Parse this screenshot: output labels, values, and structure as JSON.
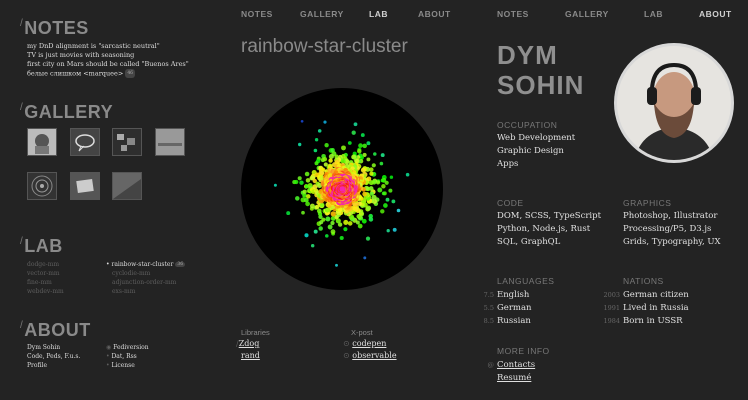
{
  "left": {
    "notes_title": "NOTES",
    "notes": [
      "my DnD alignment is \"sarcastic neutral\"",
      "TV is just movies with seasoning",
      "first city on Mars should be called \"Buenos Ares\"",
      "белые слишком <marquee>"
    ],
    "notes_badge": "46",
    "gallery_title": "GALLERY",
    "lab_title": "LAB",
    "lab_col1": [
      "dodge-mm",
      "vector-mm",
      "fine-mm",
      "webdev-mm"
    ],
    "lab_col2": [
      "rainbow-star-cluster",
      "cyclodie-mm",
      "adjunction-order-mm",
      "exs-mm"
    ],
    "lab_badge": "36",
    "about_title": "ABOUT",
    "about_col1": [
      "Dym Sohin",
      "Code, Peds, F.u.s.",
      "Profile"
    ],
    "about_col2": [
      "Fediversion",
      "Dat, Rss",
      "License"
    ]
  },
  "middle": {
    "nav": [
      "NOTES",
      "GALLERY",
      "LAB",
      "ABOUT"
    ],
    "active_nav": "LAB",
    "title": "rainbow-star-cluster",
    "libraries_label": "Libraries",
    "libraries": [
      "Zdog",
      "rand"
    ],
    "xpost_label": "X-post",
    "xposts": [
      "codepen",
      "observable"
    ]
  },
  "right": {
    "nav": [
      "NOTES",
      "GALLERY",
      "LAB",
      "ABOUT"
    ],
    "active_nav": "ABOUT",
    "name_line1": "DYM",
    "name_line2": "SOHIN",
    "occupation_label": "OCCUPATION",
    "occupation": [
      "Web Development",
      "Graphic Design",
      "Apps"
    ],
    "code_label": "CODE",
    "code": [
      "DOM, SCSS, TypeScript",
      "Python, Node.js, Rust",
      "SQL, GraphQL"
    ],
    "graphics_label": "GRAPHICS",
    "graphics": [
      "Photoshop, Illustrator",
      "Processing/P5, D3.js",
      "Grids, Typography, UX"
    ],
    "languages_label": "LANGUAGES",
    "languages": [
      {
        "level": "7.5",
        "name": "English"
      },
      {
        "level": "5.5",
        "name": "German"
      },
      {
        "level": "8.5",
        "name": "Russian"
      }
    ],
    "nations_label": "NATIONS",
    "nations": [
      {
        "year": "2003",
        "text": "German citizen"
      },
      {
        "year": "1991",
        "text": "Lived in Russia"
      },
      {
        "year": "1984",
        "text": "Born in USSR"
      }
    ],
    "more_label": "MORE INFO",
    "more": [
      "Contacts",
      "Resumé"
    ]
  },
  "colors": {
    "background": "#232323",
    "text": "#e0e0e0",
    "muted": "#8a8a8a"
  }
}
